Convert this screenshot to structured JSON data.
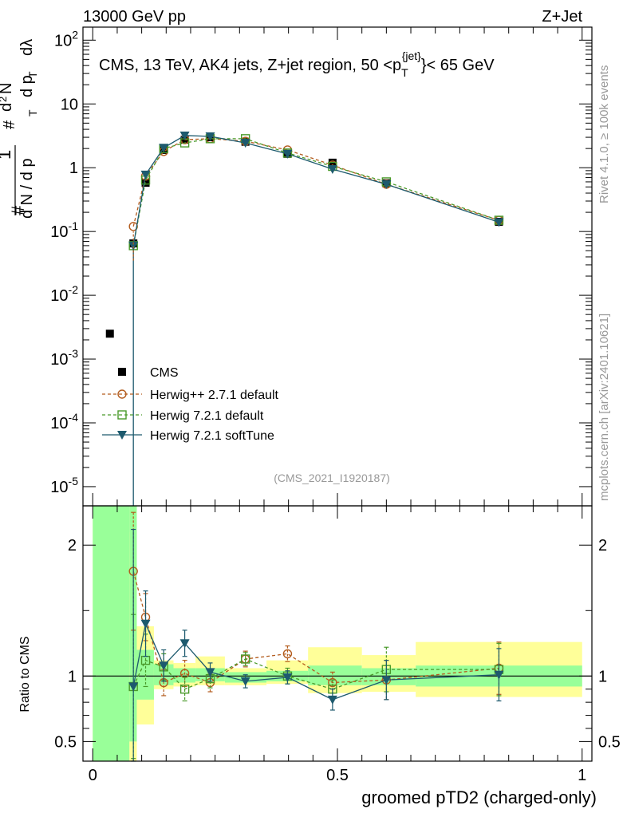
{
  "header": {
    "left": "13000 GeV pp",
    "right": "Z+Jet"
  },
  "side_labels": {
    "rivet": "Rivet 4.1.0, ≥ 100k events",
    "mcplots": "mcplots.cern.ch [arXiv:2401.10621]"
  },
  "main_title": "CMS, 13 TeV, AK4 jets, Z+jet region, 50 <p_T^{jet}< 65 GeV",
  "title_parts": {
    "pre": "CMS, 13 TeV, AK4 jets, Z+jet region, 50 <p",
    "sub": "T",
    "sup": "{jet}",
    "post": "}< 65 GeV"
  },
  "ylabel_text": "1/dN/dp_T # d^2N/dp_T dλ",
  "ylabel_parts": {
    "hash": "#",
    "one": "1",
    "dn": "d N / d p",
    "t": "T",
    "hash2": "#",
    "d2n": "d",
    "two": "2",
    "n": "N",
    "dpt": "d p",
    "dl": "dλ"
  },
  "analysis_id": "(CMS_2021_I1920187)",
  "xlabel": "groomed pTD2 (charged-only)",
  "ratio_ylabel": "Ratio to CMS",
  "legend": [
    "CMS",
    "Herwig++ 2.7.1 default",
    "Herwig 7.2.1 default",
    "Herwig 7.2.1 softTune"
  ],
  "colors": {
    "data": "#000000",
    "herwigpp": "#b35c1e",
    "herwig721": "#4a9a2a",
    "softtune": "#1d5a6e",
    "band_inner": "#99ff99",
    "band_outer": "#ffff99"
  },
  "chart_data": {
    "type": "scatter",
    "title": "CMS, 13 TeV, AK4 jets, Z+jet region, 50 <p_T^{jet}< 65 GeV",
    "xlabel": "groomed pTD2 (charged-only)",
    "ylabel": "1/dN/dp_T # d^2N/dp_T dλ",
    "xlim": [
      -0.02,
      1.02
    ],
    "ylim": [
      5e-06,
      160
    ],
    "yscale": "log",
    "x_ticks": [
      "0",
      "0.5",
      "1"
    ],
    "y_ticks": [
      "10^{-5}",
      "10^{-4}",
      "10^{-3}",
      "10^{-2}",
      "10^{-1}",
      "1",
      "10",
      "10^{2}"
    ],
    "bin_edges": [
      0.0,
      0.075,
      0.09,
      0.125,
      0.165,
      0.21,
      0.27,
      0.355,
      0.44,
      0.55,
      0.66,
      1.0
    ],
    "series": [
      {
        "name": "CMS",
        "x": [
          0.035,
          0.083,
          0.108,
          0.145,
          0.188,
          0.24,
          0.312,
          0.398,
          0.49,
          0.6,
          0.83
        ],
        "y": [
          0.0025,
          0.065,
          0.58,
          1.9,
          2.75,
          3.0,
          2.55,
          1.65,
          1.2,
          0.57,
          0.142
        ]
      },
      {
        "name": "Herwig++ 2.7.1 default",
        "x": [
          0.083,
          0.108,
          0.145,
          0.188,
          0.24,
          0.312,
          0.398,
          0.49,
          0.6,
          0.83
        ],
        "y": [
          0.12,
          0.74,
          1.8,
          2.75,
          2.85,
          2.6,
          1.9,
          1.1,
          0.55,
          0.15
        ]
      },
      {
        "name": "Herwig 7.2.1 default",
        "x": [
          0.083,
          0.108,
          0.145,
          0.188,
          0.24,
          0.312,
          0.398,
          0.49,
          0.6,
          0.83
        ],
        "y": [
          0.06,
          0.64,
          2.0,
          2.45,
          2.85,
          2.85,
          1.7,
          1.05,
          0.6,
          0.15
        ]
      },
      {
        "name": "Herwig 7.2.1 softTune",
        "x": [
          0.083,
          0.108,
          0.145,
          0.188,
          0.24,
          0.312,
          0.398,
          0.49,
          0.6,
          0.83
        ],
        "y": [
          0.06,
          0.78,
          2.05,
          3.2,
          3.1,
          2.45,
          1.65,
          0.95,
          0.55,
          0.14
        ]
      }
    ],
    "ratio": {
      "ylabel": "Ratio to CMS",
      "ylim": [
        0.35,
        2.3
      ],
      "y_ticks": [
        "0.5",
        "1",
        "2"
      ],
      "series": [
        {
          "name": "Herwig++ 2.7.1 default",
          "y": [
            1.8,
            1.45,
            0.95,
            1.02,
            0.95,
            1.13,
            1.17,
            0.95,
            0.97,
            1.06
          ],
          "err": [
            0.45,
            0.18,
            0.1,
            0.1,
            0.07,
            0.06,
            0.06,
            0.08,
            0.15,
            0.2
          ]
        },
        {
          "name": "Herwig 7.2.1 default",
          "y": [
            0.92,
            1.12,
            1.07,
            0.9,
            0.98,
            1.13,
            1.0,
            0.9,
            1.05,
            1.05
          ],
          "err": [
            0.55,
            0.2,
            0.1,
            0.09,
            0.07,
            0.05,
            0.06,
            0.07,
            0.17,
            0.2
          ]
        },
        {
          "name": "Herwig 7.2.1 softTune",
          "y": [
            0.92,
            1.4,
            1.08,
            1.25,
            1.03,
            0.96,
            0.99,
            0.82,
            0.97,
            1.01
          ],
          "err": [
            1.2,
            0.25,
            0.12,
            0.1,
            0.07,
            0.05,
            0.05,
            0.08,
            0.15,
            0.2
          ]
        }
      ],
      "band_inner": [
        [
          0.35,
          2.3
        ],
        [
          0.5,
          2.3
        ],
        [
          0.82,
          1.2
        ],
        [
          0.93,
          1.09
        ],
        [
          0.95,
          1.06
        ],
        [
          0.96,
          1.06
        ],
        [
          0.95,
          1.03
        ],
        [
          0.96,
          1.04
        ],
        [
          0.93,
          1.08
        ],
        [
          0.93,
          1.06
        ],
        [
          0.92,
          1.08
        ]
      ],
      "band_outer": [
        [
          0.35,
          2.3
        ],
        [
          0.35,
          2.1
        ],
        [
          0.63,
          1.38
        ],
        [
          0.9,
          1.12
        ],
        [
          0.92,
          1.1
        ],
        [
          0.93,
          1.15
        ],
        [
          0.93,
          1.06
        ],
        [
          0.94,
          1.12
        ],
        [
          0.87,
          1.22
        ],
        [
          0.88,
          1.16
        ],
        [
          0.84,
          1.26
        ]
      ]
    }
  }
}
